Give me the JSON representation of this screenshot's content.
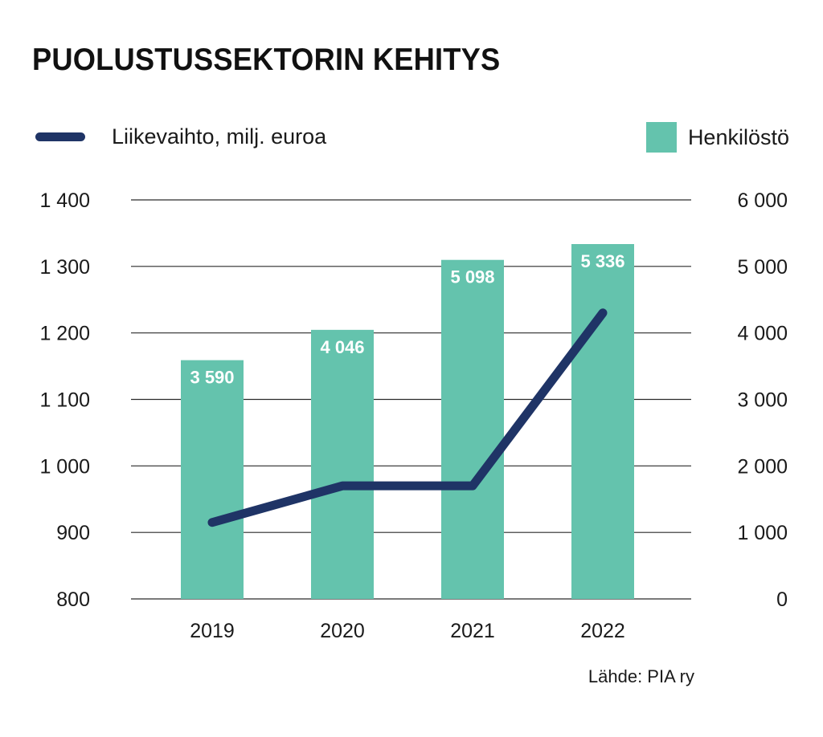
{
  "chart_data": {
    "type": "bar",
    "title": "PUOLUSTUSSEKTORIN KEHITYS",
    "categories": [
      "2019",
      "2020",
      "2021",
      "2022"
    ],
    "series": [
      {
        "name": "Henkilöstö",
        "kind": "bar",
        "axis": "right",
        "color": "#64c3ad",
        "values": [
          3590,
          4046,
          5098,
          5336
        ],
        "value_labels": [
          "3 590",
          "4 046",
          "5 098",
          "5 336"
        ]
      },
      {
        "name": "Liikevaihto, milj. euroa",
        "kind": "line",
        "axis": "left",
        "color": "#1f3466",
        "values": [
          915,
          970,
          970,
          1230
        ]
      }
    ],
    "y_left": {
      "lim": [
        800,
        1400
      ],
      "ticks": [
        800,
        900,
        1000,
        1100,
        1200,
        1300,
        1400
      ],
      "tick_labels": [
        "800",
        "900",
        "1 000",
        "1 100",
        "1 200",
        "1 300",
        "1 400"
      ]
    },
    "y_right": {
      "lim": [
        0,
        6000
      ],
      "ticks": [
        0,
        1000,
        2000,
        3000,
        4000,
        5000,
        6000
      ],
      "tick_labels": [
        "0",
        "1 000",
        "2 000",
        "3 000",
        "4 000",
        "5 000",
        "6 000"
      ]
    },
    "grid": true,
    "legend_placement": "top"
  },
  "source": "Lähde: PIA ry"
}
